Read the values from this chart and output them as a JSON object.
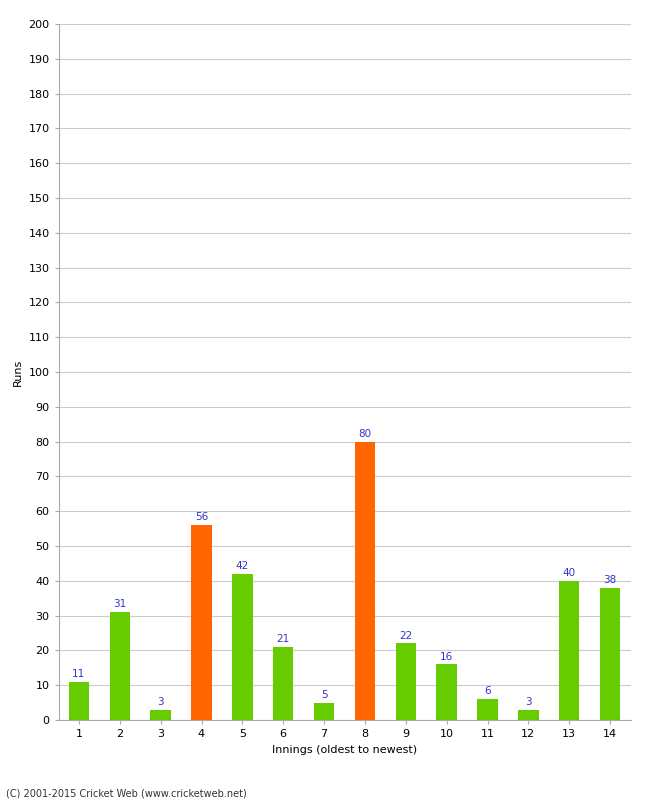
{
  "xlabel": "Innings (oldest to newest)",
  "ylabel": "Runs",
  "categories": [
    1,
    2,
    3,
    4,
    5,
    6,
    7,
    8,
    9,
    10,
    11,
    12,
    13,
    14
  ],
  "values": [
    11,
    31,
    3,
    56,
    42,
    21,
    5,
    80,
    22,
    16,
    6,
    3,
    40,
    38
  ],
  "bar_colors": [
    "#66cc00",
    "#66cc00",
    "#66cc00",
    "#ff6600",
    "#66cc00",
    "#66cc00",
    "#66cc00",
    "#ff6600",
    "#66cc00",
    "#66cc00",
    "#66cc00",
    "#66cc00",
    "#66cc00",
    "#66cc00"
  ],
  "ylim": [
    0,
    200
  ],
  "ytick_step": 10,
  "label_color": "#3333cc",
  "label_fontsize": 7.5,
  "axis_fontsize": 8,
  "ylabel_fontsize": 8,
  "xlabel_fontsize": 8,
  "background_color": "#ffffff",
  "grid_color": "#cccccc",
  "footer": "(C) 2001-2015 Cricket Web (www.cricketweb.net)"
}
